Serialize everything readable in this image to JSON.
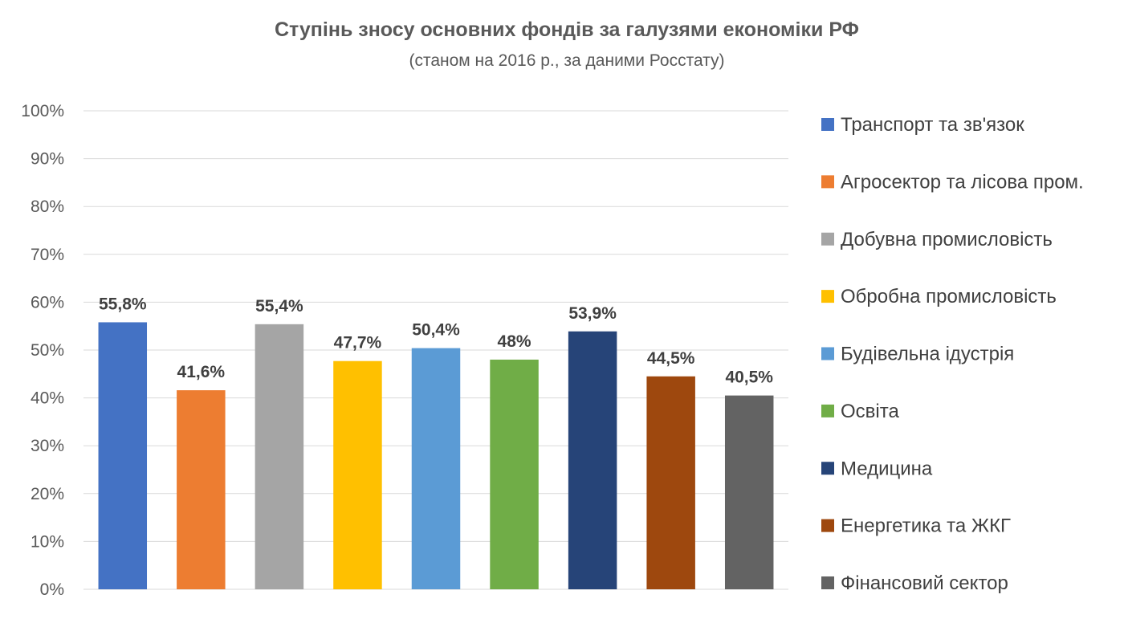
{
  "chart_data": {
    "type": "bar",
    "title": "Ступінь зносу основних фондів за галузями економіки РФ",
    "subtitle": "(станом на 2016 р., за даними Росстату)",
    "xlabel": "",
    "ylabel": "",
    "ylim": [
      0,
      100
    ],
    "yticks": [
      "0%",
      "10%",
      "20%",
      "30%",
      "40%",
      "50%",
      "60%",
      "70%",
      "80%",
      "90%",
      "100%"
    ],
    "grid": true,
    "legend_position": "right",
    "series": [
      {
        "name": "Транспорт та зв'язок",
        "value": 55.8,
        "label": "55,8%",
        "color": "#4472c4"
      },
      {
        "name": "Агросектор та лісова пром.",
        "value": 41.6,
        "label": "41,6%",
        "color": "#ed7d31"
      },
      {
        "name": "Добувна промисловість",
        "value": 55.4,
        "label": "55,4%",
        "color": "#a5a5a5"
      },
      {
        "name": "Обробна промисловість",
        "value": 47.7,
        "label": "47,7%",
        "color": "#ffc000"
      },
      {
        "name": "Будівельна ідустрія",
        "value": 50.4,
        "label": "50,4%",
        "color": "#5b9bd5"
      },
      {
        "name": "Освіта",
        "value": 48,
        "label": "48%",
        "color": "#70ad47"
      },
      {
        "name": "Медицина",
        "value": 53.9,
        "label": "53,9%",
        "color": "#264478"
      },
      {
        "name": "Енергетика та ЖКГ",
        "value": 44.5,
        "label": "44,5%",
        "color": "#9e480e"
      },
      {
        "name": "Фінансовий сектор",
        "value": 40.5,
        "label": "40,5%",
        "color": "#636363"
      }
    ]
  }
}
